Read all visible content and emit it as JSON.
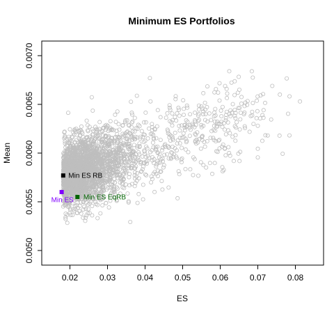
{
  "chart_data": {
    "type": "scatter",
    "title": "Minimum ES Portfolios",
    "xlabel": "ES",
    "ylabel": "Mean",
    "xlim": [
      0.0125,
      0.0875
    ],
    "ylim": [
      0.00485,
      0.00715
    ],
    "x_ticks": [
      0.02,
      0.03,
      0.04,
      0.05,
      0.06,
      0.07,
      0.08
    ],
    "x_tick_labels": [
      "0.02",
      "0.03",
      "0.04",
      "0.05",
      "0.06",
      "0.07",
      "0.08"
    ],
    "y_ticks": [
      0.005,
      0.0055,
      0.006,
      0.0065,
      0.007
    ],
    "y_tick_labels": [
      "0.0050",
      "0.0055",
      "0.0060",
      "0.0065",
      "0.0070"
    ],
    "grid": false,
    "cloud": {
      "description_color": "#bebebe",
      "count": 2600,
      "x_min": 0.0182,
      "x_max": 0.086,
      "y_min": 0.00522,
      "y_max": 0.00684,
      "seed": 7
    },
    "highlighted": [
      {
        "label": "Min ES",
        "x": 0.0178,
        "y": 0.0056,
        "color": "#8000ff",
        "label_x": 0.018,
        "label_y": 0.00552,
        "label_align": "middle"
      },
      {
        "label": "Min ES RB",
        "x": 0.0182,
        "y": 0.00577,
        "color": "#000000",
        "label_x": 0.0196,
        "label_y": 0.00577,
        "label_align": "start"
      },
      {
        "label": "Min ES EqRB",
        "x": 0.022,
        "y": 0.00555,
        "color": "#006400",
        "label_x": 0.0236,
        "label_y": 0.00555,
        "label_align": "start"
      }
    ]
  }
}
